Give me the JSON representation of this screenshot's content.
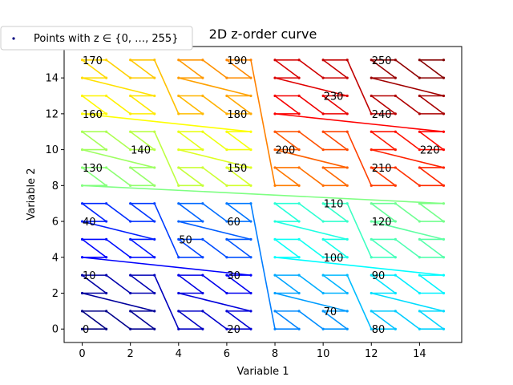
{
  "chart_data": {
    "type": "line",
    "title": "2D z-order curve",
    "xlabel": "Variable 1",
    "ylabel": "Variable 2",
    "xlim": [
      -0.75,
      15.75
    ],
    "ylim": [
      -0.75,
      15.75
    ],
    "x_ticks": [
      0,
      2,
      4,
      6,
      8,
      10,
      12,
      14
    ],
    "y_ticks": [
      0,
      2,
      4,
      6,
      8,
      10,
      12,
      14
    ],
    "grid": false,
    "colormap": "jet",
    "n_points": 256,
    "curve": "Morton (z-order) interleaving of z: x = even bits of z, y = odd bits of z",
    "point_labels_every": 10,
    "legend": {
      "placement": "top-left, outside axes",
      "entries": [
        "Points with z ∈ {0, …, 255}"
      ]
    }
  }
}
